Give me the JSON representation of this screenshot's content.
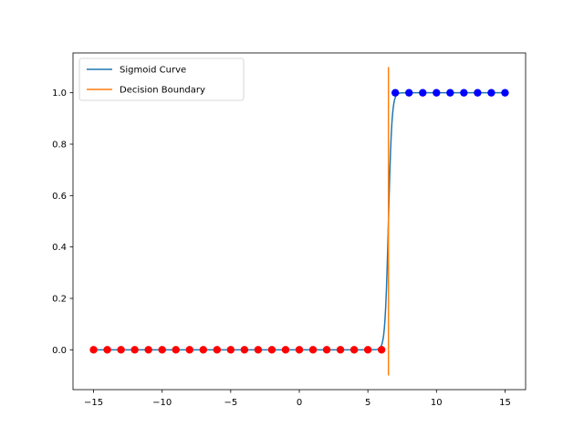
{
  "chart_data": {
    "type": "scatter",
    "xlim": [
      -16.5,
      16.5
    ],
    "ylim": [
      -0.155,
      1.155
    ],
    "x_ticks": [
      -15,
      -10,
      -5,
      0,
      5,
      10,
      15
    ],
    "x_tick_labels": [
      "−15",
      "−10",
      "−5",
      "0",
      "5",
      "10",
      "15"
    ],
    "y_ticks": [
      0.0,
      0.2,
      0.4,
      0.6,
      0.8,
      1.0
    ],
    "y_tick_labels": [
      "0.0",
      "0.2",
      "0.4",
      "0.6",
      "0.8",
      "1.0"
    ],
    "legend_position": "top-left",
    "grid": false,
    "series": [
      {
        "name": "Sigmoid Curve",
        "kind": "line",
        "color": "#1f77b4",
        "function": "sigmoid",
        "center": 6.5,
        "steepness": 8,
        "x_range": [
          -15,
          15
        ]
      },
      {
        "name": "Decision Boundary",
        "kind": "vline",
        "color": "#ff7f0e",
        "x": 6.5,
        "y_range": [
          -0.1,
          1.1
        ]
      }
    ],
    "points": [
      {
        "x": -15,
        "y": 0,
        "color": "#ff0000"
      },
      {
        "x": -14,
        "y": 0,
        "color": "#ff0000"
      },
      {
        "x": -13,
        "y": 0,
        "color": "#ff0000"
      },
      {
        "x": -12,
        "y": 0,
        "color": "#ff0000"
      },
      {
        "x": -11,
        "y": 0,
        "color": "#ff0000"
      },
      {
        "x": -10,
        "y": 0,
        "color": "#ff0000"
      },
      {
        "x": -9,
        "y": 0,
        "color": "#ff0000"
      },
      {
        "x": -8,
        "y": 0,
        "color": "#ff0000"
      },
      {
        "x": -7,
        "y": 0,
        "color": "#ff0000"
      },
      {
        "x": -6,
        "y": 0,
        "color": "#ff0000"
      },
      {
        "x": -5,
        "y": 0,
        "color": "#ff0000"
      },
      {
        "x": -4,
        "y": 0,
        "color": "#ff0000"
      },
      {
        "x": -3,
        "y": 0,
        "color": "#ff0000"
      },
      {
        "x": -2,
        "y": 0,
        "color": "#ff0000"
      },
      {
        "x": -1,
        "y": 0,
        "color": "#ff0000"
      },
      {
        "x": 0,
        "y": 0,
        "color": "#ff0000"
      },
      {
        "x": 1,
        "y": 0,
        "color": "#ff0000"
      },
      {
        "x": 2,
        "y": 0,
        "color": "#ff0000"
      },
      {
        "x": 3,
        "y": 0,
        "color": "#ff0000"
      },
      {
        "x": 4,
        "y": 0,
        "color": "#ff0000"
      },
      {
        "x": 5,
        "y": 0,
        "color": "#ff0000"
      },
      {
        "x": 6,
        "y": 0,
        "color": "#ff0000"
      },
      {
        "x": 7,
        "y": 1,
        "color": "#0000ff"
      },
      {
        "x": 8,
        "y": 1,
        "color": "#0000ff"
      },
      {
        "x": 9,
        "y": 1,
        "color": "#0000ff"
      },
      {
        "x": 10,
        "y": 1,
        "color": "#0000ff"
      },
      {
        "x": 11,
        "y": 1,
        "color": "#0000ff"
      },
      {
        "x": 12,
        "y": 1,
        "color": "#0000ff"
      },
      {
        "x": 13,
        "y": 1,
        "color": "#0000ff"
      },
      {
        "x": 14,
        "y": 1,
        "color": "#0000ff"
      },
      {
        "x": 15,
        "y": 1,
        "color": "#0000ff"
      }
    ]
  }
}
